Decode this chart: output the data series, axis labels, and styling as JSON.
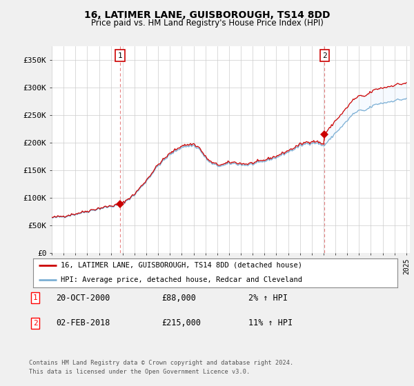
{
  "title": "16, LATIMER LANE, GUISBOROUGH, TS14 8DD",
  "subtitle": "Price paid vs. HM Land Registry's House Price Index (HPI)",
  "sale1_date": "20-OCT-2000",
  "sale1_price": 88000,
  "sale1_label": "1",
  "sale1_hpi_text": "2% ↑ HPI",
  "sale2_date": "02-FEB-2018",
  "sale2_price": 215000,
  "sale2_label": "2",
  "sale2_hpi_text": "11% ↑ HPI",
  "legend1": "16, LATIMER LANE, GUISBOROUGH, TS14 8DD (detached house)",
  "legend2": "HPI: Average price, detached house, Redcar and Cleveland",
  "footnote": "Contains HM Land Registry data © Crown copyright and database right 2024.\nThis data is licensed under the Open Government Licence v3.0.",
  "hpi_color": "#7bafd4",
  "sale_color": "#cc0000",
  "vline_color": "#e88080",
  "fill_color": "#ddeeff",
  "ylim": [
    0,
    375000
  ],
  "yticks": [
    0,
    50000,
    100000,
    150000,
    200000,
    250000,
    300000,
    350000
  ],
  "ytick_labels": [
    "£0",
    "£50K",
    "£100K",
    "£150K",
    "£200K",
    "£250K",
    "£300K",
    "£350K"
  ],
  "background_color": "#f0f0f0",
  "plot_bg_color": "#ffffff",
  "grid_color": "#cccccc",
  "sale1_year_float": 2000.789,
  "sale2_year_float": 2018.083
}
